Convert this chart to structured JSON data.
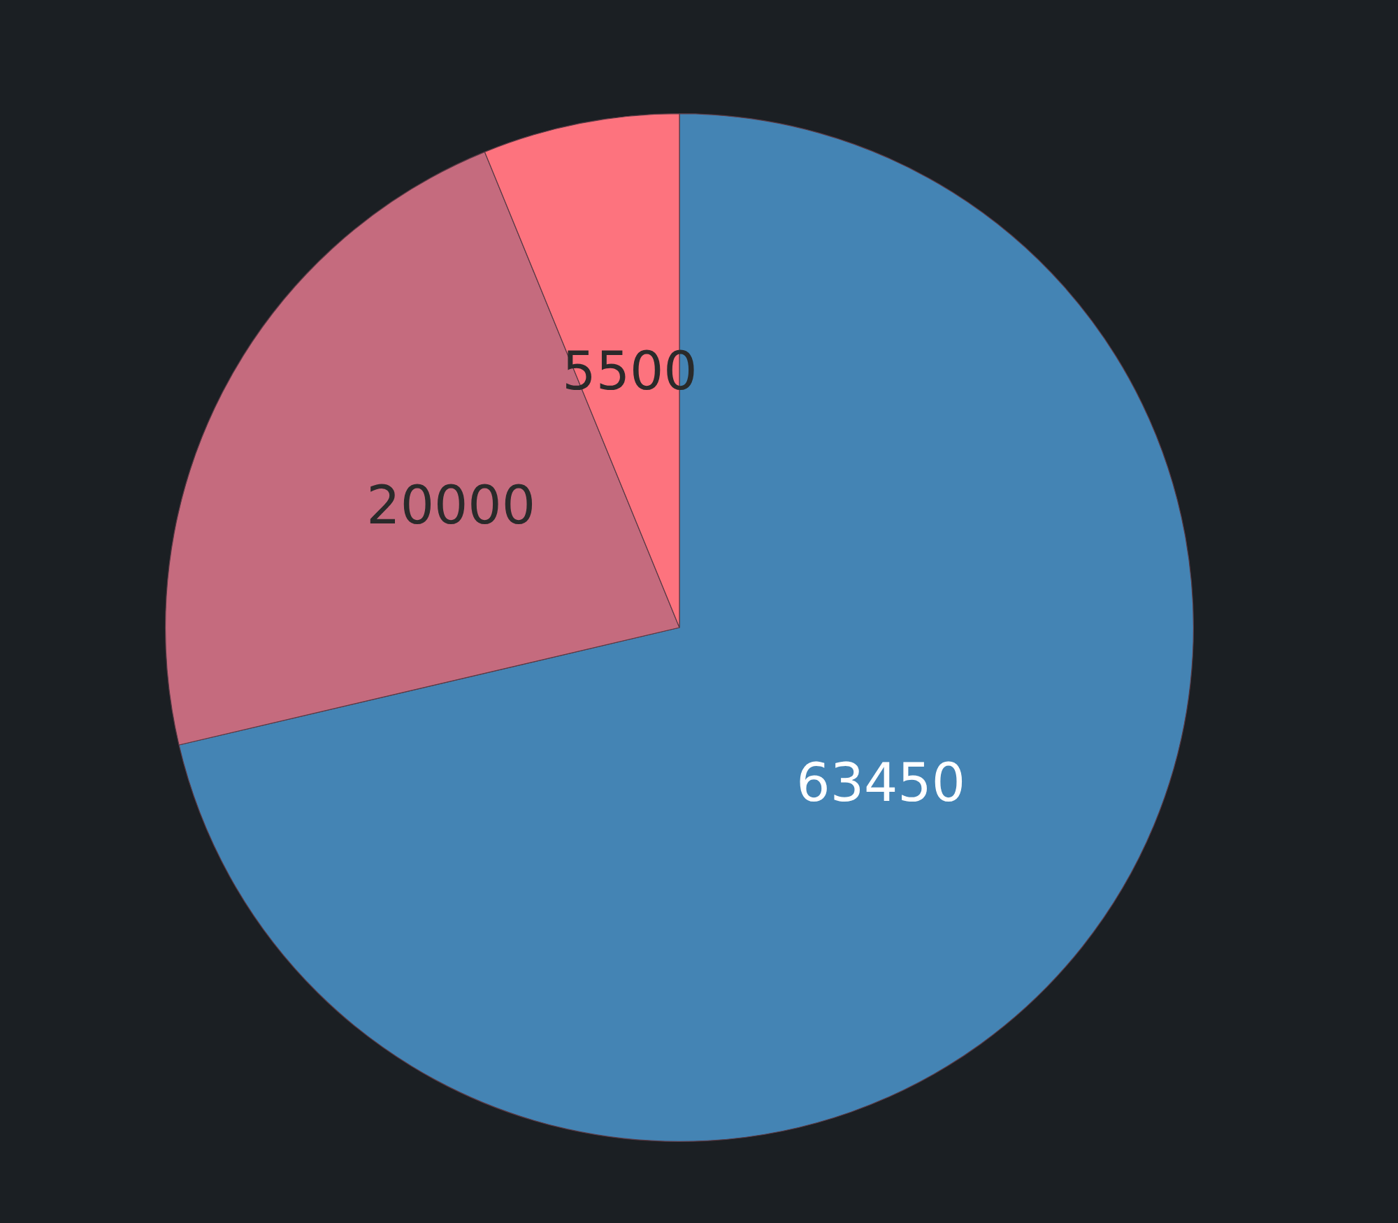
{
  "chart_data": {
    "type": "pie",
    "categories": [
      null,
      null,
      null
    ],
    "values": [
      63450,
      20000,
      5500
    ],
    "colors": [
      "#4484b4",
      "#c56b7e",
      "#fd737e"
    ],
    "data_labels": true,
    "legend": false
  }
}
